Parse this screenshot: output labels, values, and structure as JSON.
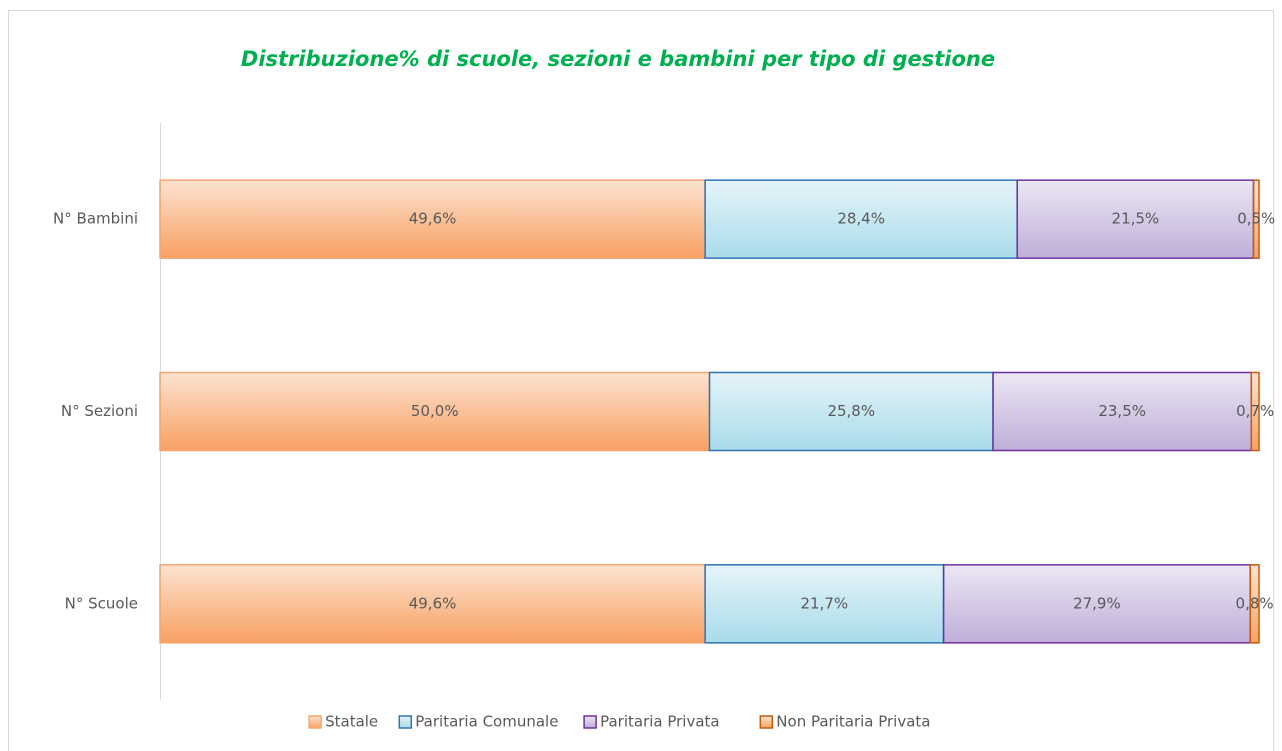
{
  "chart_data": {
    "type": "stacked_bar_horizontal",
    "title": "Distribuzione% di scuole, sezioni e bambini per tipo di gestione",
    "categories": [
      "N° Bambini",
      "N° Sezioni",
      "N° Scuole"
    ],
    "xlim": [
      0,
      100
    ],
    "series": [
      {
        "name": "Statale",
        "color": "#f7a062",
        "border_color": "#f4a870",
        "values": [
          49.6,
          50.0,
          49.6
        ],
        "value_labels": [
          "49,6%",
          "50,0%",
          "49,6%"
        ]
      },
      {
        "name": "Paritaria Comunale",
        "color": "#a9dbea",
        "border_color": "#2e75b6",
        "values": [
          28.4,
          25.8,
          21.7
        ],
        "value_labels": [
          "28,4%",
          "25,8%",
          "21,7%"
        ]
      },
      {
        "name": "Paritaria Privata",
        "color": "#bfaed8",
        "border_color": "#7030a0",
        "values": [
          21.5,
          23.5,
          27.9
        ],
        "value_labels": [
          "21,5%",
          "23,5%",
          "27,9%"
        ]
      },
      {
        "name": "Non Paritaria Privata",
        "color": "#f4a460",
        "border_color": "#c55a11",
        "values": [
          0.5,
          0.7,
          0.8
        ],
        "value_labels": [
          "0,5%",
          "0,7%",
          "0,8%"
        ]
      }
    ]
  }
}
